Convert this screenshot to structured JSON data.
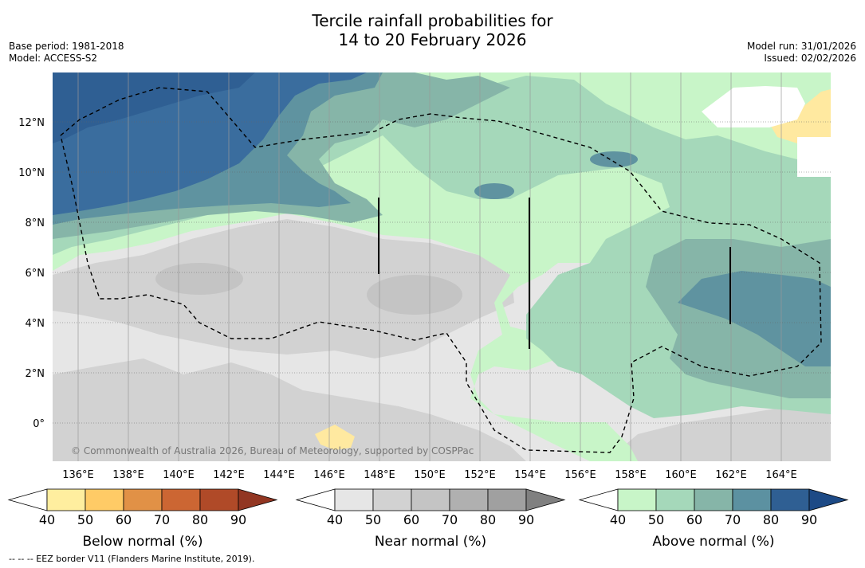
{
  "title": {
    "line1": "Tercile rainfall probabilities for",
    "line2": "14 to 20 February 2026"
  },
  "meta": {
    "base_period": "Base period: 1981-2018",
    "model": "Model: ACCESS-S2",
    "model_run": "Model run: 31/01/2026",
    "issued": "Issued: 02/02/2026"
  },
  "map": {
    "lon_labels": [
      "136°E",
      "138°E",
      "140°E",
      "142°E",
      "144°E",
      "146°E",
      "148°E",
      "150°E",
      "152°E",
      "154°E",
      "156°E",
      "158°E",
      "160°E",
      "162°E",
      "164°E"
    ],
    "lat_labels": [
      "12°N",
      "10°N",
      "8°N",
      "6°N",
      "4°N",
      "2°N",
      "0°"
    ],
    "copyright": "© Commonwealth of Australia 2026, Bureau of Meteorology, supported by COSPPac",
    "colors": {
      "an40": "#c8f5c8",
      "an50": "#a5d8ba",
      "an60": "#8bb5a8",
      "an70": "#5f93a0",
      "an80": "#3a6d9e",
      "an90": "#2f5f93",
      "nn40": "#e6e6e6",
      "nn50": "#d2d2d2",
      "nn60": "#c4c4c4",
      "bn40": "#ffe9a0",
      "bn50": "#ffcc66"
    }
  },
  "colorbars": [
    {
      "title": "Below normal (%)",
      "ticks": [
        "40",
        "50",
        "60",
        "70",
        "80",
        "90"
      ],
      "colors": [
        "#ffee9f",
        "#ffcb66",
        "#e19146",
        "#cc6633",
        "#b04a28",
        "#923622"
      ]
    },
    {
      "title": "Near normal (%)",
      "ticks": [
        "40",
        "50",
        "60",
        "70",
        "80",
        "90"
      ],
      "colors": [
        "#e6e6e6",
        "#d2d2d2",
        "#c4c4c4",
        "#b0b0b0",
        "#a0a0a0",
        "#808080"
      ]
    },
    {
      "title": "Above normal (%)",
      "ticks": [
        "40",
        "50",
        "60",
        "70",
        "80",
        "90"
      ],
      "colors": [
        "#c8f5c8",
        "#a5d8ba",
        "#86b5a8",
        "#5c91a1",
        "#2f5f93",
        "#1d4a86"
      ]
    }
  ],
  "footer": "--  --  -- EEZ border V11 (Flanders Marine Institute, 2019)."
}
